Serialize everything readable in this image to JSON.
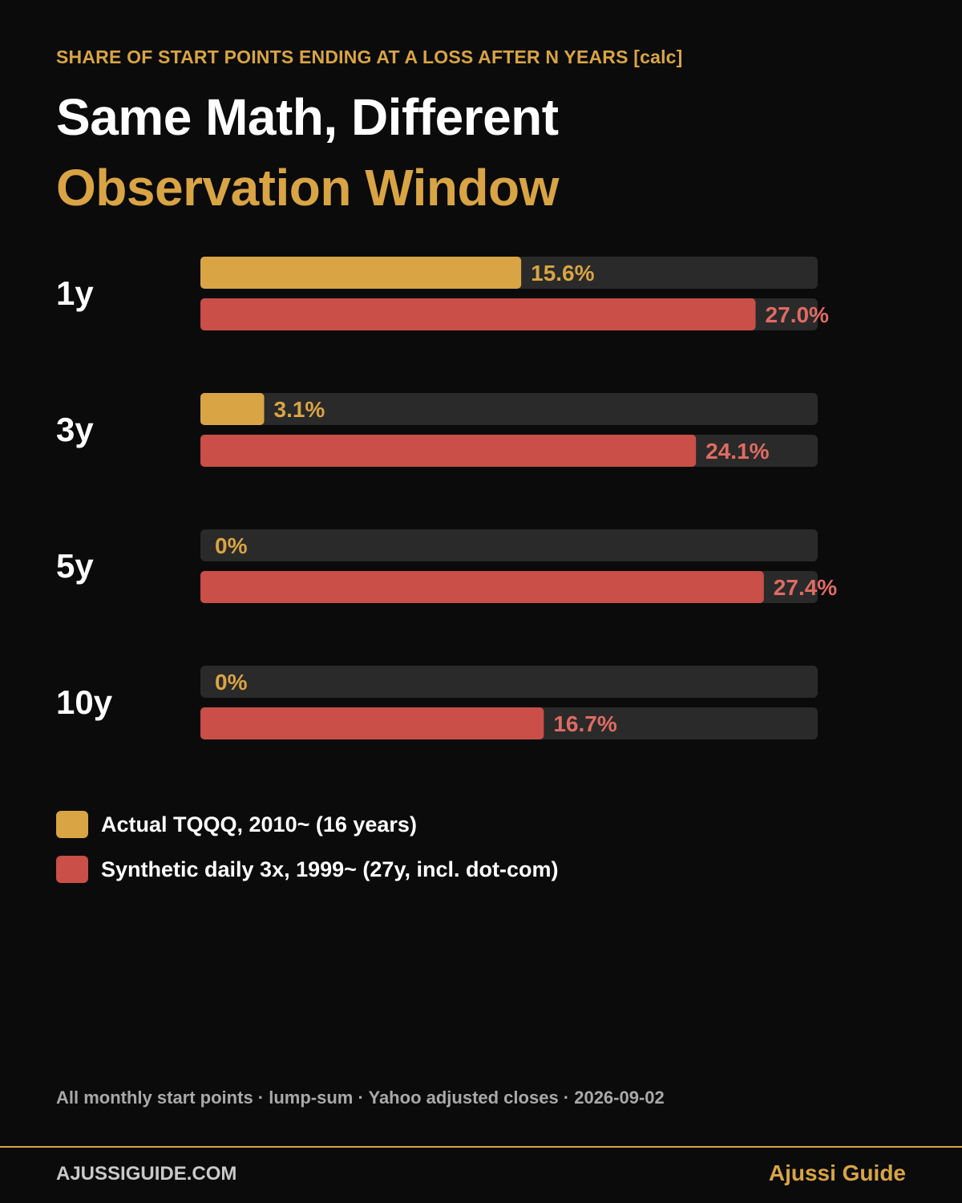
{
  "header": {
    "kicker": "SHARE OF START POINTS ENDING AT A LOSS AFTER N YEARS [calc]",
    "title_line1": "Same Math, Different",
    "title_line2": "Observation Window"
  },
  "colors": {
    "accent": "#d9a444",
    "actual": "#d9a444",
    "synthetic": "#c94f48",
    "synthetic_label": "#e06b63",
    "track": "#2a2a2a",
    "background": "#0b0b0b"
  },
  "chart_data": {
    "type": "bar",
    "orientation": "horizontal",
    "title": "Same Math, Different Observation Window",
    "subtitle": "SHARE OF START POINTS ENDING AT A LOSS AFTER N YEARS [calc]",
    "categories": [
      "1y",
      "3y",
      "5y",
      "10y"
    ],
    "xlim": [
      0,
      30
    ],
    "grid": false,
    "legend": "bottom-left",
    "series": [
      {
        "name": "Actual TQQQ, 2010~ (16 years)",
        "values": [
          15.6,
          3.1,
          0,
          0
        ],
        "labels": [
          "15.6%",
          "3.1%",
          "0%",
          "0%"
        ]
      },
      {
        "name": "Synthetic daily 3x, 1999~ (27y, incl. dot-com)",
        "values": [
          27.0,
          24.1,
          27.4,
          16.7
        ],
        "labels": [
          "27.0%",
          "24.1%",
          "27.4%",
          "16.7%"
        ]
      }
    ]
  },
  "legend": {
    "items": [
      {
        "label": "Actual TQQQ, 2010~ (16 years)"
      },
      {
        "label": "Synthetic daily 3x, 1999~ (27y, incl. dot-com)"
      }
    ]
  },
  "footnote": "All monthly start points · lump-sum · Yahoo adjusted closes · 2026-09-02",
  "footer": {
    "site": "AJUSSIGUIDE.COM",
    "brand": "Ajussi Guide"
  }
}
